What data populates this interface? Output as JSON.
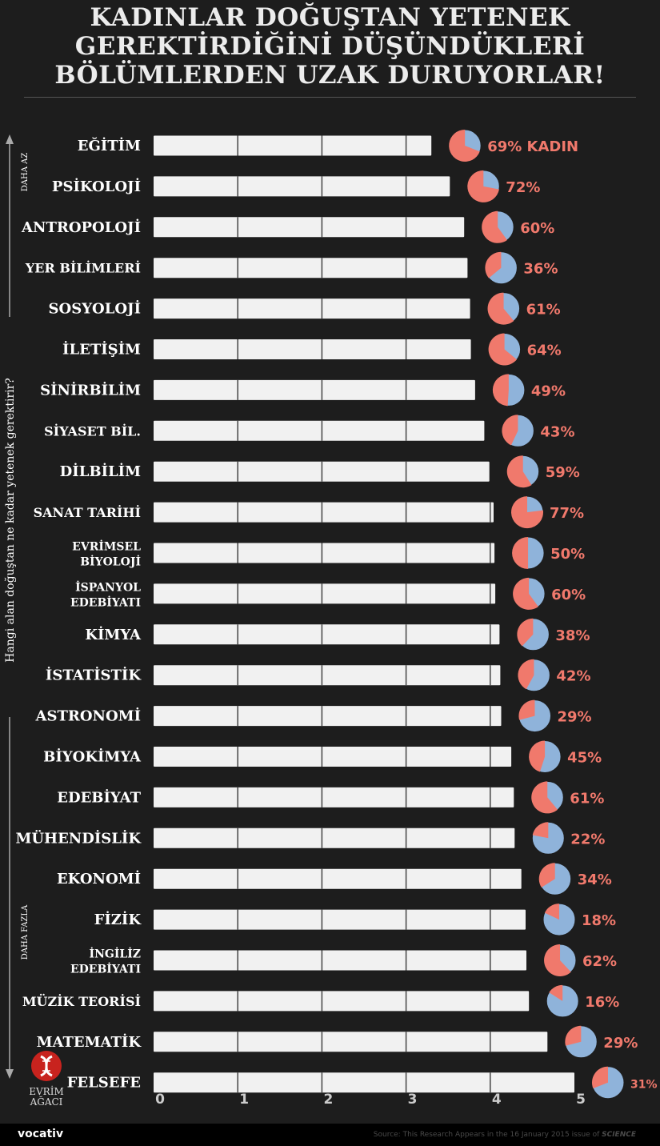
{
  "title_lines": [
    "KADINLAR DOĞUŞTAN YETENEK",
    "GEREKTİRDİĞİNİ DÜŞÜNDÜKLERİ",
    "BÖLÜMLERDEN UZAK DURUYORLAR!"
  ],
  "colors": {
    "background": "#1d1d1d",
    "bar": "#f1f1f1",
    "female": "#f0796c",
    "male": "#8fb3da",
    "label": "#ffffff",
    "axis": "#cccccc"
  },
  "chart_data": {
    "type": "bar",
    "orientation": "horizontal",
    "y_axis_label": "Hangi alan doğuştan ne kadar yetenek gerektirir?",
    "y_axis_top": "DAHA AZ",
    "y_axis_bottom": "DAHA FAZLA",
    "xlim": [
      0,
      5
    ],
    "x_ticks": [
      "0",
      "1",
      "2",
      "3",
      "4",
      "5"
    ],
    "first_pie_suffix": "KADIN",
    "categories": [
      {
        "label": [
          "EĞİTİM"
        ],
        "value": 3.3,
        "female_pct": 69,
        "pct_label": "69%"
      },
      {
        "label": [
          "PSİKOLOJİ"
        ],
        "value": 3.52,
        "female_pct": 72,
        "pct_label": "72%"
      },
      {
        "label": [
          "ANTROPOLOJİ"
        ],
        "value": 3.69,
        "female_pct": 60,
        "pct_label": "60%"
      },
      {
        "label": [
          "YER BİLİMLERİ"
        ],
        "value": 3.73,
        "female_pct": 36,
        "pct_label": "36%"
      },
      {
        "label": [
          "SOSYOLOJİ"
        ],
        "value": 3.76,
        "female_pct": 61,
        "pct_label": "61%"
      },
      {
        "label": [
          "İLETİŞİM"
        ],
        "value": 3.77,
        "female_pct": 64,
        "pct_label": "64%"
      },
      {
        "label": [
          "SİNİRBİLİM"
        ],
        "value": 3.82,
        "female_pct": 49,
        "pct_label": "49%"
      },
      {
        "label": [
          "SİYASET BİL."
        ],
        "value": 3.93,
        "female_pct": 43,
        "pct_label": "43%"
      },
      {
        "label": [
          "DİLBİLİM"
        ],
        "value": 3.99,
        "female_pct": 59,
        "pct_label": "59%"
      },
      {
        "label": [
          "SANAT TARİHİ"
        ],
        "value": 4.04,
        "female_pct": 77,
        "pct_label": "77%"
      },
      {
        "label": [
          "EVRİMSEL",
          "BİYOLOJİ"
        ],
        "value": 4.05,
        "female_pct": 50,
        "pct_label": "50%"
      },
      {
        "label": [
          "İSPANYOL",
          "EDEBİYATI"
        ],
        "value": 4.06,
        "female_pct": 60,
        "pct_label": "60%"
      },
      {
        "label": [
          "KİMYA"
        ],
        "value": 4.11,
        "female_pct": 38,
        "pct_label": "38%"
      },
      {
        "label": [
          "İSTATİSTİK"
        ],
        "value": 4.12,
        "female_pct": 42,
        "pct_label": "42%"
      },
      {
        "label": [
          "ASTRONOMİ"
        ],
        "value": 4.13,
        "female_pct": 29,
        "pct_label": "29%"
      },
      {
        "label": [
          "BİYOKİMYA"
        ],
        "value": 4.25,
        "female_pct": 45,
        "pct_label": "45%"
      },
      {
        "label": [
          "EDEBİYAT"
        ],
        "value": 4.28,
        "female_pct": 61,
        "pct_label": "61%"
      },
      {
        "label": [
          "MÜHENDİSLİK"
        ],
        "value": 4.29,
        "female_pct": 22,
        "pct_label": "22%"
      },
      {
        "label": [
          "EKONOMİ"
        ],
        "value": 4.37,
        "female_pct": 34,
        "pct_label": "34%"
      },
      {
        "label": [
          "FİZİK"
        ],
        "value": 4.42,
        "female_pct": 18,
        "pct_label": "18%"
      },
      {
        "label": [
          "İNGİLİZ",
          "EDEBİYATI"
        ],
        "value": 4.43,
        "female_pct": 62,
        "pct_label": "62%"
      },
      {
        "label": [
          "MÜZİK TEORİSİ"
        ],
        "value": 4.46,
        "female_pct": 16,
        "pct_label": "16%"
      },
      {
        "label": [
          "MATEMATİK"
        ],
        "value": 4.68,
        "female_pct": 29,
        "pct_label": "29%"
      },
      {
        "label": [
          "FELSEFE"
        ],
        "value": 5.0,
        "female_pct": 31,
        "pct_label": "31%"
      }
    ]
  },
  "logo": {
    "text": "EVRİM AĞACI"
  },
  "footer": {
    "brand": "vocativ",
    "source_prefix": "Source: This Research Appears in the 16 January 2015 issue of ",
    "source_journal": "SCIENCE"
  }
}
